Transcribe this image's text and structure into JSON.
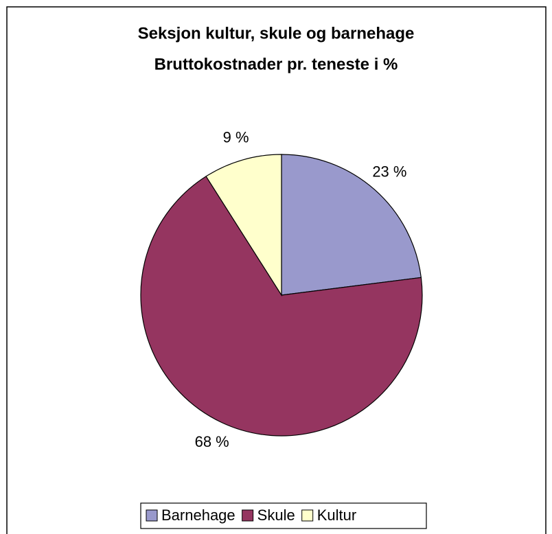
{
  "chart_data": {
    "type": "pie",
    "title": [
      "Seksjon kultur, skule og barnehage",
      "Bruttokostnader pr. teneste i %"
    ],
    "categories": [
      "Barnehage",
      "Skule",
      "Kultur"
    ],
    "values": [
      23,
      68,
      9
    ],
    "value_labels": [
      "23 %",
      "68 %",
      "9 %"
    ],
    "colors": [
      "#9999cc",
      "#953560",
      "#ffffcc"
    ],
    "legend": "bottom"
  }
}
